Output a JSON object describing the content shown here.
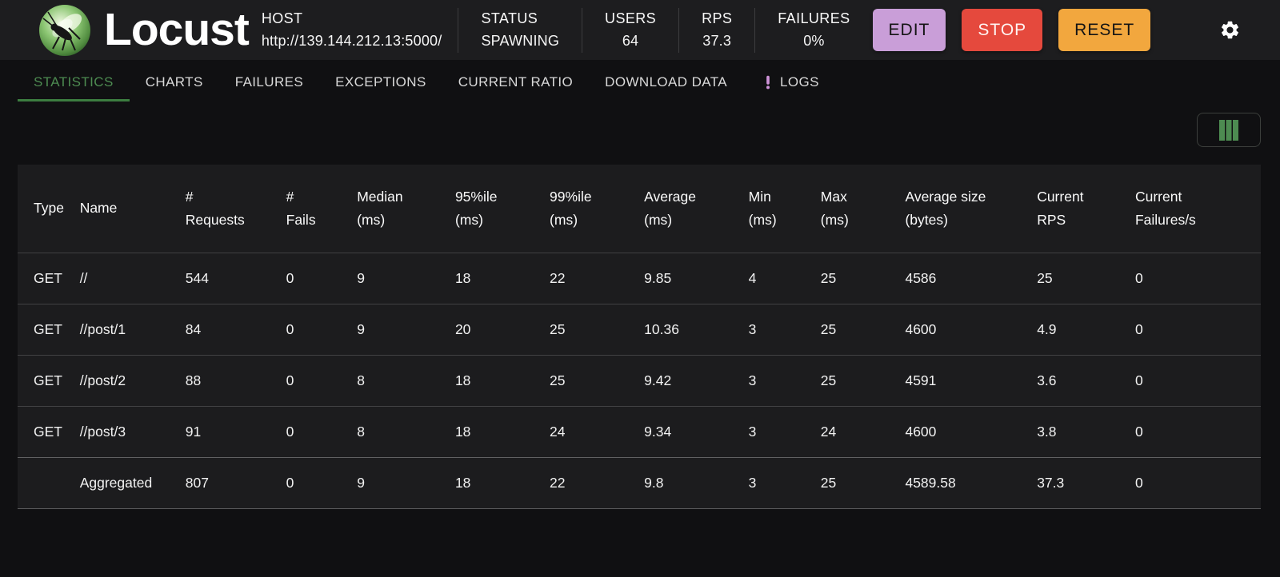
{
  "header": {
    "app_name": "Locust",
    "host": {
      "label": "HOST",
      "url": "http://139.144.212.13:5000/"
    },
    "stats": [
      {
        "label": "STATUS",
        "value": "SPAWNING"
      },
      {
        "label": "USERS",
        "value": "64"
      },
      {
        "label": "RPS",
        "value": "37.3"
      },
      {
        "label": "FAILURES",
        "value": "0%"
      }
    ],
    "buttons": {
      "edit": "EDIT",
      "stop": "STOP",
      "reset": "RESET"
    }
  },
  "tabs": [
    {
      "label": "STATISTICS",
      "active": true
    },
    {
      "label": "CHARTS",
      "active": false
    },
    {
      "label": "FAILURES",
      "active": false
    },
    {
      "label": "EXCEPTIONS",
      "active": false
    },
    {
      "label": "CURRENT RATIO",
      "active": false
    },
    {
      "label": "DOWNLOAD DATA",
      "active": false
    },
    {
      "label": "LOGS",
      "active": false,
      "icon": "exclamation-icon"
    }
  ],
  "table": {
    "columns": [
      "Type",
      "Name",
      "#\nRequests",
      "#\nFails",
      "Median\n(ms)",
      "95%ile\n(ms)",
      "99%ile\n(ms)",
      "Average\n(ms)",
      "Min\n(ms)",
      "Max\n(ms)",
      "Average size\n(bytes)",
      "Current\nRPS",
      "Current\nFailures/s"
    ],
    "rows": [
      [
        "GET",
        "//",
        "544",
        "0",
        "9",
        "18",
        "22",
        "9.85",
        "4",
        "25",
        "4586",
        "25",
        "0"
      ],
      [
        "GET",
        "//post/1",
        "84",
        "0",
        "9",
        "20",
        "25",
        "10.36",
        "3",
        "25",
        "4600",
        "4.9",
        "0"
      ],
      [
        "GET",
        "//post/2",
        "88",
        "0",
        "8",
        "18",
        "25",
        "9.42",
        "3",
        "25",
        "4591",
        "3.6",
        "0"
      ],
      [
        "GET",
        "//post/3",
        "91",
        "0",
        "8",
        "18",
        "24",
        "9.34",
        "3",
        "24",
        "4600",
        "3.8",
        "0"
      ],
      [
        "",
        "Aggregated",
        "807",
        "0",
        "9",
        "18",
        "22",
        "9.8",
        "3",
        "25",
        "4589.58",
        "37.3",
        "0"
      ]
    ]
  },
  "icons": {
    "logo": "locust-logo",
    "gear": "gear-icon",
    "columns": "columns-icon",
    "logs": "exclamation-icon"
  },
  "colors": {
    "accent_green": "#4d8b51",
    "edit_button": "#c99ed8",
    "stop_button": "#e5493d",
    "reset_button": "#f2a73e",
    "logs_icon": "#ce93d8",
    "header_bg": "#1d1d1f",
    "page_bg": "#101012",
    "table_bg": "#1c1c1e"
  }
}
